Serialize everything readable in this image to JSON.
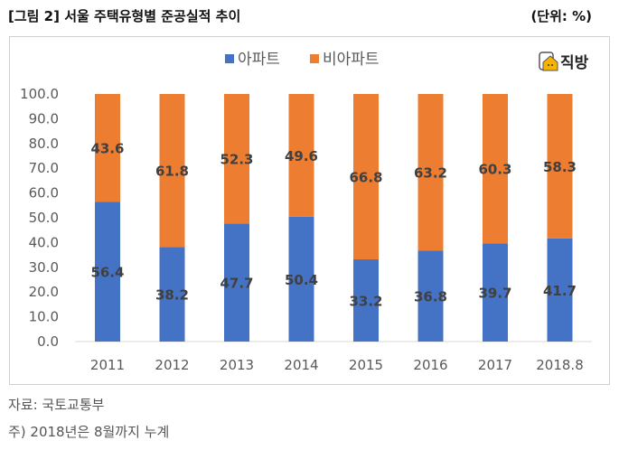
{
  "header": {
    "title": "[그림 2] 서울 주택유형별 준공실적 추이",
    "unit": "(단위: %)"
  },
  "logo": {
    "text": "직방"
  },
  "notes": {
    "source": "자료: 국토교통부",
    "footnote": "주) 2018년은 8월까지 누계"
  },
  "chart_data": {
    "type": "bar",
    "stacked": true,
    "title": "",
    "xlabel": "",
    "ylabel": "",
    "ylim": [
      0,
      100
    ],
    "yticks": [
      "0.0",
      "10.0",
      "20.0",
      "30.0",
      "40.0",
      "50.0",
      "60.0",
      "70.0",
      "80.0",
      "90.0",
      "100.0"
    ],
    "categories": [
      "2011",
      "2012",
      "2013",
      "2014",
      "2015",
      "2016",
      "2017",
      "2018.8"
    ],
    "legend_position": "top",
    "series": [
      {
        "name": "아파트",
        "color": "#4472C4",
        "values": [
          56.4,
          38.2,
          47.7,
          50.4,
          33.2,
          36.8,
          39.7,
          41.7
        ]
      },
      {
        "name": "비아파트",
        "color": "#ED7D31",
        "values": [
          43.6,
          61.8,
          52.3,
          49.6,
          66.8,
          63.2,
          60.3,
          58.3
        ]
      }
    ]
  }
}
